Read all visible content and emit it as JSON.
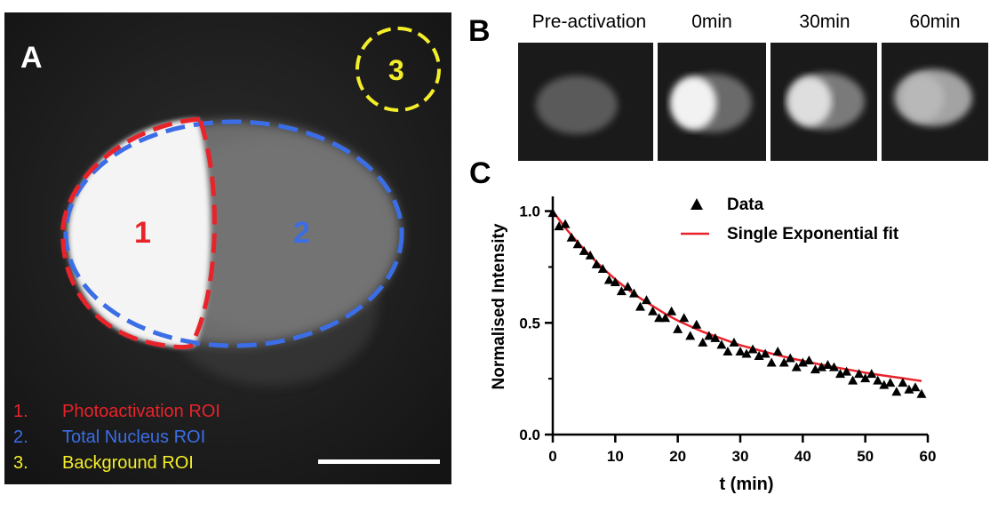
{
  "panelA": {
    "letter": "A",
    "roi_labels": [
      "1",
      "2",
      "3"
    ],
    "legend": [
      {
        "num": "1.",
        "text": "Photoactivation ROI",
        "color": "#e8232a"
      },
      {
        "num": "2.",
        "text": "Total Nucleus ROI",
        "color": "#3b6ee6"
      },
      {
        "num": "3.",
        "text": "Background ROI",
        "color": "#f4ee2a"
      }
    ]
  },
  "panelB": {
    "letter": "B",
    "labels": [
      "Pre-activation",
      "0min",
      "30min",
      "60min"
    ]
  },
  "panelC": {
    "letter": "C",
    "legend_data": "Data",
    "legend_fit": "Single Exponential fit"
  },
  "colors": {
    "red": "#e8232a",
    "blue": "#3b6ee6",
    "yellow": "#f4ee2a"
  },
  "chart_data": {
    "type": "scatter",
    "xlabel": "t (min)",
    "ylabel": "Normalised Intensity",
    "xlim": [
      0,
      60
    ],
    "ylim": [
      0,
      1.05
    ],
    "xticks": [
      "0",
      "10",
      "20",
      "30",
      "40",
      "50",
      "60"
    ],
    "yticks": [
      "0.0",
      "0.5",
      "1.0"
    ],
    "series": [
      {
        "name": "Data",
        "marker": "triangle",
        "x": [
          0,
          1,
          2,
          3,
          4,
          5,
          6,
          7,
          8,
          9,
          10,
          11,
          12,
          13,
          14,
          15,
          16,
          17,
          18,
          19,
          20,
          21,
          22,
          23,
          24,
          25,
          26,
          27,
          28,
          29,
          30,
          31,
          32,
          33,
          34,
          35,
          36,
          37,
          38,
          39,
          40,
          41,
          42,
          43,
          44,
          45,
          46,
          47,
          48,
          49,
          50,
          51,
          52,
          53,
          54,
          55,
          56,
          57,
          58,
          59
        ],
        "y": [
          0.99,
          0.93,
          0.94,
          0.88,
          0.85,
          0.82,
          0.8,
          0.76,
          0.74,
          0.69,
          0.68,
          0.64,
          0.66,
          0.63,
          0.57,
          0.6,
          0.55,
          0.52,
          0.52,
          0.55,
          0.47,
          0.52,
          0.44,
          0.49,
          0.41,
          0.44,
          0.43,
          0.4,
          0.37,
          0.41,
          0.37,
          0.36,
          0.38,
          0.35,
          0.36,
          0.32,
          0.37,
          0.32,
          0.34,
          0.3,
          0.32,
          0.33,
          0.29,
          0.3,
          0.31,
          0.3,
          0.27,
          0.28,
          0.24,
          0.27,
          0.25,
          0.27,
          0.24,
          0.22,
          0.23,
          0.19,
          0.23,
          0.2,
          0.21,
          0.18
        ]
      },
      {
        "name": "Single Exponential fit",
        "type": "line",
        "color": "#e8232a",
        "x": [
          0,
          2,
          4,
          6,
          8,
          10,
          12,
          14,
          16,
          18,
          20,
          22,
          24,
          26,
          28,
          30,
          32,
          34,
          36,
          38,
          40,
          42,
          44,
          46,
          48,
          50,
          52,
          54,
          56,
          58,
          59
        ],
        "y": [
          1.0,
          0.925,
          0.86,
          0.8,
          0.745,
          0.695,
          0.65,
          0.61,
          0.575,
          0.54,
          0.51,
          0.485,
          0.46,
          0.44,
          0.42,
          0.4,
          0.385,
          0.37,
          0.355,
          0.342,
          0.33,
          0.318,
          0.307,
          0.297,
          0.287,
          0.277,
          0.268,
          0.26,
          0.252,
          0.244,
          0.24
        ]
      }
    ]
  }
}
